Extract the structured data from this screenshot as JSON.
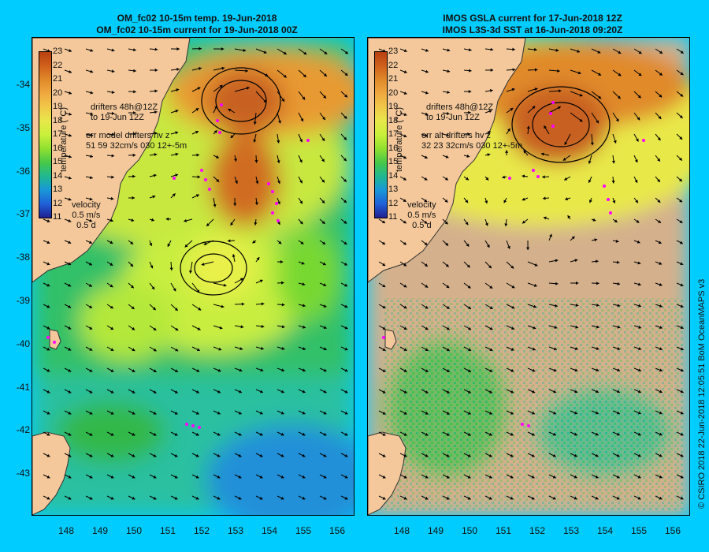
{
  "left_panel": {
    "title_line1": "OM_fc02 10-15m temp. 19-Jun-2018",
    "title_line2": "OM_fc02 10-15m current for 19-Jun-2018 00Z",
    "drifters_note_line1": "drifters 48h@12Z",
    "drifters_note_line2": "to 19-Jun 12Z",
    "err_note_line1": "err model drifters hv z",
    "err_note_line2": "51 59 32cm/s 030 12+-5m"
  },
  "right_panel": {
    "title_line1": "IMOS GSLA current for 17-Jun-2018 12Z",
    "title_line2": "IMOS L3S-3d SST at 16-Jun-2018 09:20Z",
    "drifters_note_line1": "drifters 48h@12Z",
    "drifters_note_line2": "to 19-Jun 12Z",
    "err_note_line1": "err alt drifters hv z",
    "err_note_line2": "32 23 32cm/s 030 12+-5m"
  },
  "colorbar": {
    "title": "temperature (°C)",
    "ticks": [
      "23",
      "22",
      "21",
      "20",
      "19",
      "18",
      "17",
      "16",
      "15",
      "14",
      "13",
      "12",
      "11"
    ],
    "colors": [
      "#b84010",
      "#d0601c",
      "#e08a2a",
      "#f0a840",
      "#f0c848",
      "#e8e84a",
      "#c8f03a",
      "#90e030",
      "#48c848",
      "#20b890",
      "#1898d8",
      "#2060d8",
      "#202090"
    ]
  },
  "velocity_scale": {
    "label": "velocity",
    "speed": "0.5 m/s",
    "time": "0.5 d"
  },
  "y_ticks": [
    "-34",
    "-35",
    "-36",
    "-37",
    "-38",
    "-39",
    "-40",
    "-41",
    "-42",
    "-43"
  ],
  "x_ticks": [
    "148",
    "149",
    "150",
    "151",
    "152",
    "153",
    "154",
    "155",
    "156"
  ],
  "credit": "© CSIRO 2018   22-Jun-2018 12:05:51 BoM OceanMAPS v3",
  "colors": {
    "land": "#f4c89a",
    "frame_bg": "#00ccff",
    "drifter": "#ff00ff",
    "sst_missing": "#d4b08c"
  }
}
